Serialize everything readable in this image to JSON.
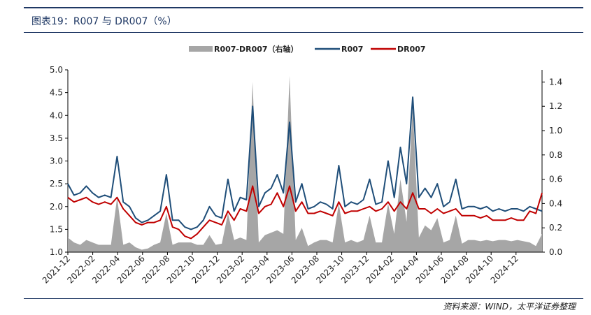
{
  "header": {
    "title": "图表19：R007 与 DR007（%）"
  },
  "footer": {
    "source": "资料来源：WIND，太平洋证券整理"
  },
  "colors": {
    "r007": "#1f4e79",
    "dr007": "#c00000",
    "spread": "#a6a6a6",
    "accent": "#1f3864"
  },
  "chart_data": {
    "type": "line",
    "title": "",
    "legend": [
      {
        "name": "R007-DR007（右轴）",
        "type": "area",
        "color": "#a6a6a6"
      },
      {
        "name": "R007",
        "type": "line",
        "color": "#1f4e79"
      },
      {
        "name": "DR007",
        "type": "line",
        "color": "#c00000"
      }
    ],
    "legend_position": "top-center",
    "x_tick_labels": [
      "2021-12",
      "2022-02",
      "2022-04",
      "2022-06",
      "2022-08",
      "2022-10",
      "2022-12",
      "2023-02",
      "2023-04",
      "2023-06",
      "2023-08",
      "2023-10",
      "2023-12",
      "2024-02",
      "2024-04",
      "2024-06",
      "2024-08",
      "2024-10",
      "2024-12"
    ],
    "y_left": {
      "min": 1.0,
      "max": 5.0,
      "ticks": [
        "1.0",
        "1.5",
        "2.0",
        "2.5",
        "3.0",
        "3.5",
        "4.0",
        "4.5",
        "5.0"
      ]
    },
    "y_right": {
      "min": 0.0,
      "max": 1.5,
      "ticks": [
        "0.0",
        "0.2",
        "0.4",
        "0.6",
        "0.8",
        "1.0",
        "1.2",
        "1.4"
      ]
    },
    "x": [
      0,
      0.5,
      1,
      1.5,
      2,
      2.5,
      3,
      3.5,
      4,
      4.5,
      5,
      5.5,
      6,
      6.5,
      7,
      7.5,
      8,
      8.5,
      9,
      9.5,
      10,
      10.5,
      11,
      11.5,
      12,
      12.5,
      13,
      13.5,
      14,
      14.5,
      15,
      15.5,
      16,
      16.5,
      17,
      17.5,
      18,
      18.5,
      19,
      19.5,
      20,
      20.5,
      21,
      21.5,
      22,
      22.5,
      23,
      23.5,
      24,
      24.5,
      25,
      25.5,
      26,
      26.5,
      27,
      27.5,
      28,
      28.5,
      29,
      29.5,
      30,
      30.5,
      31,
      31.5,
      32,
      32.5,
      33,
      33.5,
      34,
      34.5,
      35,
      35.5,
      36,
      36.5,
      37,
      37.5,
      38,
      38.5
    ],
    "series": [
      {
        "name": "R007",
        "axis": "left",
        "values": [
          2.5,
          2.25,
          2.3,
          2.45,
          2.3,
          2.2,
          2.25,
          2.2,
          3.1,
          2.1,
          2.0,
          1.75,
          1.65,
          1.7,
          1.8,
          1.9,
          2.7,
          1.7,
          1.7,
          1.55,
          1.5,
          1.55,
          1.7,
          2.0,
          1.8,
          1.75,
          2.6,
          1.9,
          2.2,
          2.15,
          4.2,
          2.0,
          2.3,
          2.4,
          2.7,
          2.3,
          3.85,
          2.1,
          2.5,
          1.95,
          2.0,
          2.1,
          2.05,
          1.95,
          2.9,
          2.0,
          2.1,
          2.05,
          2.15,
          2.6,
          2.05,
          2.1,
          3.0,
          2.2,
          3.3,
          2.5,
          4.4,
          2.2,
          2.4,
          2.2,
          2.5,
          2.0,
          2.1,
          2.6,
          1.95,
          2.0,
          2.0,
          1.95,
          2.0,
          1.9,
          1.95,
          1.9,
          1.95,
          1.95,
          1.9,
          2.0,
          1.95,
          1.9
        ]
      },
      {
        "name": "DR007",
        "axis": "left",
        "values": [
          2.2,
          2.1,
          2.15,
          2.2,
          2.1,
          2.05,
          2.1,
          2.05,
          2.2,
          1.95,
          1.8,
          1.65,
          1.6,
          1.65,
          1.65,
          1.7,
          2.0,
          1.55,
          1.5,
          1.35,
          1.3,
          1.4,
          1.55,
          1.7,
          1.65,
          1.6,
          1.9,
          1.7,
          1.95,
          1.9,
          2.45,
          1.85,
          2.0,
          2.05,
          2.3,
          2.0,
          2.45,
          1.9,
          2.1,
          1.85,
          1.85,
          1.9,
          1.85,
          1.8,
          2.1,
          1.85,
          1.9,
          1.9,
          1.95,
          2.0,
          1.9,
          1.95,
          2.1,
          1.9,
          2.1,
          1.95,
          2.3,
          1.95,
          1.95,
          1.85,
          1.95,
          1.85,
          1.9,
          1.95,
          1.8,
          1.8,
          1.8,
          1.75,
          1.8,
          1.7,
          1.7,
          1.7,
          1.75,
          1.7,
          1.7,
          1.9,
          1.85,
          2.3
        ]
      },
      {
        "name": "R007-DR007（右轴）",
        "axis": "right",
        "type": "area",
        "values": [
          0.12,
          0.08,
          0.06,
          0.1,
          0.08,
          0.06,
          0.06,
          0.06,
          0.45,
          0.06,
          0.08,
          0.04,
          0.02,
          0.03,
          0.06,
          0.08,
          0.32,
          0.06,
          0.08,
          0.08,
          0.08,
          0.06,
          0.06,
          0.14,
          0.06,
          0.07,
          0.32,
          0.1,
          0.12,
          0.1,
          1.4,
          0.08,
          0.14,
          0.16,
          0.18,
          0.15,
          1.45,
          0.1,
          0.2,
          0.05,
          0.08,
          0.1,
          0.1,
          0.08,
          0.4,
          0.08,
          0.1,
          0.08,
          0.1,
          0.3,
          0.08,
          0.08,
          0.4,
          0.15,
          0.6,
          0.25,
          1.2,
          0.12,
          0.22,
          0.18,
          0.28,
          0.08,
          0.1,
          0.3,
          0.07,
          0.1,
          0.1,
          0.09,
          0.1,
          0.09,
          0.1,
          0.1,
          0.09,
          0.1,
          0.09,
          0.08,
          0.05,
          0.15
        ]
      }
    ]
  }
}
